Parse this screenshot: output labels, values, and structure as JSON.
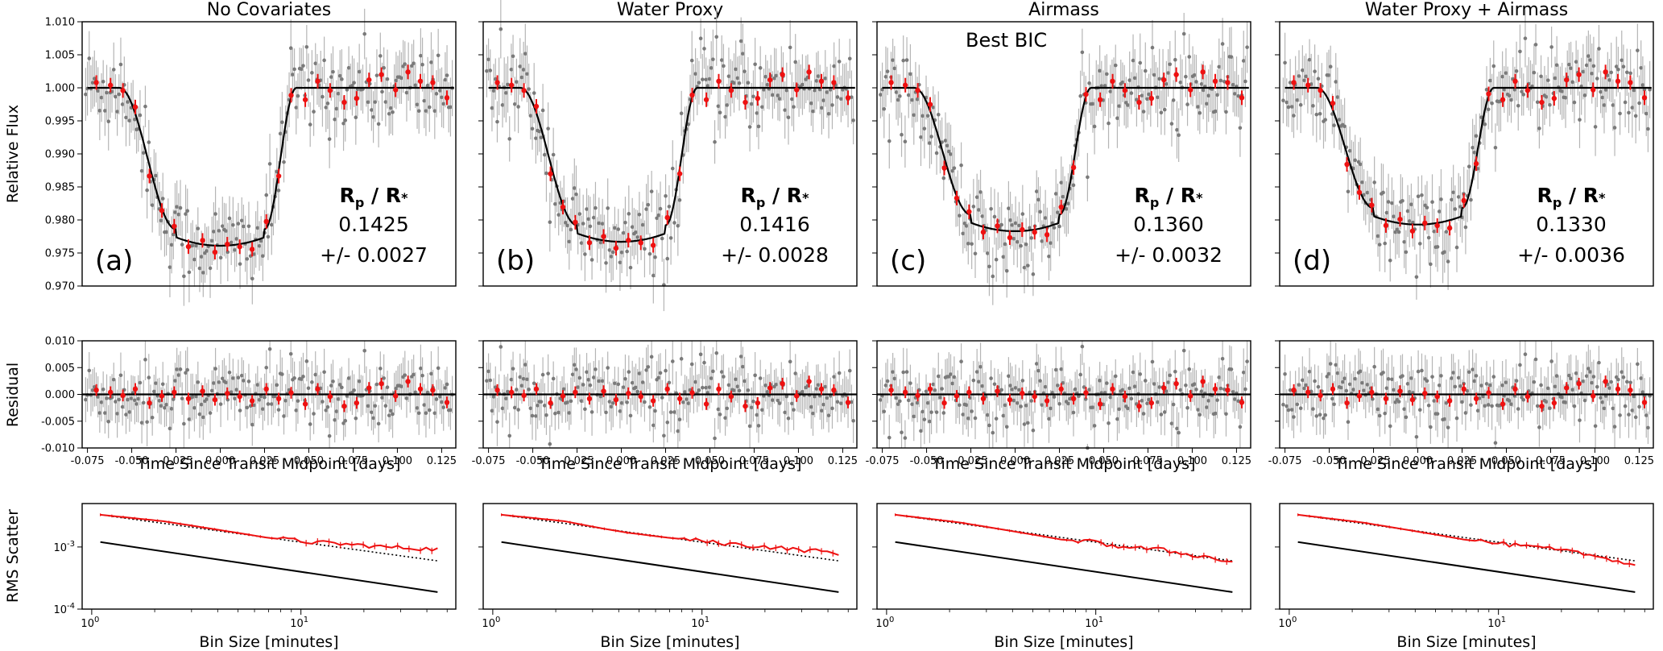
{
  "chart_data": {
    "type": "line",
    "figure_layout": "3 rows x 4 columns",
    "rows": {
      "flux": {
        "ylabel": "Relative Flux",
        "ylim": [
          0.97,
          1.01
        ],
        "yticks": [
          "0.970",
          "0.975",
          "0.980",
          "0.985",
          "0.990",
          "0.995",
          "1.000",
          "1.005",
          "1.010"
        ]
      },
      "residual": {
        "ylabel": "Residual",
        "ylim": [
          -0.01,
          0.01
        ],
        "yticks": [
          "-0.010",
          "-0.005",
          "0.000",
          "0.005",
          "0.010"
        ],
        "xlabel": "Time Since Transit Midpoint [days]",
        "xlim": [
          -0.078,
          0.133
        ],
        "xticks": [
          "-0.075",
          "-0.050",
          "-0.025",
          "0.000",
          "0.025",
          "0.050",
          "0.075",
          "0.100",
          "0.125"
        ]
      },
      "rms": {
        "ylabel": "RMS Scatter",
        "xlabel": "Bin Size [minutes]",
        "xscale": "log",
        "yscale": "log",
        "xlim": [
          0.9,
          55
        ],
        "ylim": [
          0.0001,
          0.005
        ],
        "xtick_bases": [
          "10",
          "10"
        ],
        "xtick_exps": [
          "0",
          "1"
        ],
        "ytick_bases": [
          "10",
          "10"
        ],
        "ytick_exps": [
          "-3",
          "-4"
        ]
      }
    },
    "panels": [
      {
        "title": "No Covariates",
        "letter": "(a)",
        "rp_main": "R",
        "rp_sub1": "p",
        "rp_mid": " / R",
        "rp_sub2": "*",
        "rp_value": "0.1425",
        "rp_err": "+/- 0.0027",
        "depth": 0.0214,
        "annotation": ""
      },
      {
        "title": "Water Proxy",
        "letter": "(b)",
        "rp_main": "R",
        "rp_sub1": "p",
        "rp_mid": " / R",
        "rp_sub2": "*",
        "rp_value": "0.1416",
        "rp_err": "+/- 0.0028",
        "depth": 0.0208,
        "annotation": ""
      },
      {
        "title": "Airmass",
        "letter": "(c)",
        "rp_main": "R",
        "rp_sub1": "p",
        "rp_mid": " / R",
        "rp_sub2": "*",
        "rp_value": "0.1360",
        "rp_err": "+/- 0.0032",
        "depth": 0.0192,
        "annotation": "Best BIC"
      },
      {
        "title": "Water Proxy + Airmass",
        "letter": "(d)",
        "rp_main": "R",
        "rp_sub1": "p",
        "rp_mid": " / R",
        "rp_sub2": "*",
        "rp_value": "0.1330",
        "rp_err": "+/- 0.0036",
        "depth": 0.0182,
        "annotation": ""
      }
    ],
    "transit_model": {
      "baseline": 1.0,
      "ingress_start": -0.057,
      "ingress_end": -0.025,
      "egress_start": 0.025,
      "egress_end": 0.043
    },
    "binned_times": [
      -0.07,
      -0.062,
      -0.055,
      -0.048,
      -0.04,
      -0.033,
      -0.026,
      -0.018,
      -0.01,
      -0.003,
      0.004,
      0.011,
      0.018,
      0.026,
      0.033,
      0.04,
      0.048,
      0.055,
      0.062,
      0.07,
      0.077,
      0.084,
      0.091,
      0.099,
      0.106,
      0.113,
      0.12,
      0.128
    ],
    "binned_residuals": [
      0.0008,
      0.0004,
      -0.0002,
      0.001,
      -0.0016,
      -0.0003,
      0.0004,
      -0.0008,
      0.0006,
      -0.001,
      0.0002,
      -0.0004,
      -0.0012,
      0.001,
      -0.0008,
      0.0003,
      -0.0018,
      0.001,
      -0.0004,
      -0.0022,
      -0.0016,
      0.0012,
      0.002,
      -0.0003,
      0.0024,
      0.001,
      0.0008,
      -0.0015
    ],
    "rms_series": {
      "bin_sizes": [
        1.1,
        2.2,
        3.3,
        4.4,
        5.5,
        7,
        9,
        11,
        14,
        17,
        21,
        25,
        29,
        33,
        37,
        41,
        45
      ],
      "measured": [
        [
          0.0033,
          0.0026,
          0.0021,
          0.0018,
          0.0016,
          0.0014,
          0.0013,
          0.0012,
          0.00115,
          0.0011,
          0.00105,
          0.001,
          0.00098,
          0.00097,
          0.00095,
          0.00093,
          0.00092
        ],
        [
          0.0033,
          0.0026,
          0.002,
          0.0017,
          0.00155,
          0.0014,
          0.0013,
          0.0012,
          0.00112,
          0.00105,
          0.001,
          0.00095,
          0.0009,
          0.00088,
          0.00085,
          0.00082,
          0.0008
        ],
        [
          0.0033,
          0.0025,
          0.002,
          0.0017,
          0.0015,
          0.0013,
          0.00125,
          0.0011,
          0.001,
          0.00095,
          0.0009,
          0.0008,
          0.00075,
          0.0007,
          0.00065,
          0.0006,
          0.00058
        ],
        [
          0.0033,
          0.0025,
          0.002,
          0.0017,
          0.0015,
          0.0013,
          0.0012,
          0.0011,
          0.001,
          0.00095,
          0.00085,
          0.0008,
          0.0007,
          0.00068,
          0.0006,
          0.00055,
          0.0005
        ]
      ],
      "expected_white_noise_at_1min": 0.0033,
      "photon_noise_at_1min": 0.0012
    }
  }
}
